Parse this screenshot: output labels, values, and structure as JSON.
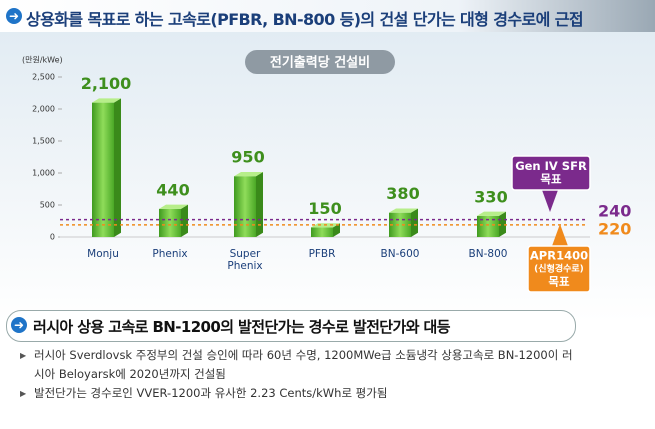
{
  "header": {
    "title": "상용화를 목표로 하는 고속로(PFBR, BN-800 등)의 건설 단가는 대형 경수로에 근접"
  },
  "chart_data": {
    "type": "bar3d",
    "title": "전기출력당 건설비",
    "y_unit": "(만원/kWe)",
    "categories": [
      "Monju",
      "Phenix",
      "Super Phenix",
      "PFBR",
      "BN-600",
      "BN-800"
    ],
    "values": [
      2100,
      440,
      950,
      150,
      380,
      330
    ],
    "value_labels": [
      "2,100",
      "440",
      "950",
      "150",
      "380",
      "330"
    ],
    "color": "#58b82e",
    "ylim": [
      0,
      2500
    ],
    "yticks": [
      0,
      500,
      {
        "value": 1000,
        "label": "1,000"
      },
      {
        "value": 1500,
        "label": "1,500"
      },
      {
        "value": 2000,
        "label": "2,000"
      },
      {
        "value": 2500,
        "label": "2,500"
      }
    ],
    "reference_lines": [
      {
        "value": 240,
        "color": "#7b2a8c",
        "label_lines": [
          "Gen IV SFR",
          "목표"
        ]
      },
      {
        "value": 220,
        "color": "#f08a1c",
        "label_lines": [
          "APR1400",
          "(신형경수로)",
          "목표"
        ]
      }
    ]
  },
  "section": {
    "title": "러시아 상용 고속로 BN-1200의 발전단가는 경수로 발전단가와 대등",
    "bullets": [
      "러시아 Sverdlovsk 주정부의 건설 승인에 따라 60년 수명, 1200MWe급 소듐냉각 상용고속로 BN-1200이 러시아 Beloyarsk에 2020년까지 건설됨",
      "발전단가는 경수로인 VVER-1200과 유사한 2.23 Cents/kWh로 평가됨"
    ]
  }
}
